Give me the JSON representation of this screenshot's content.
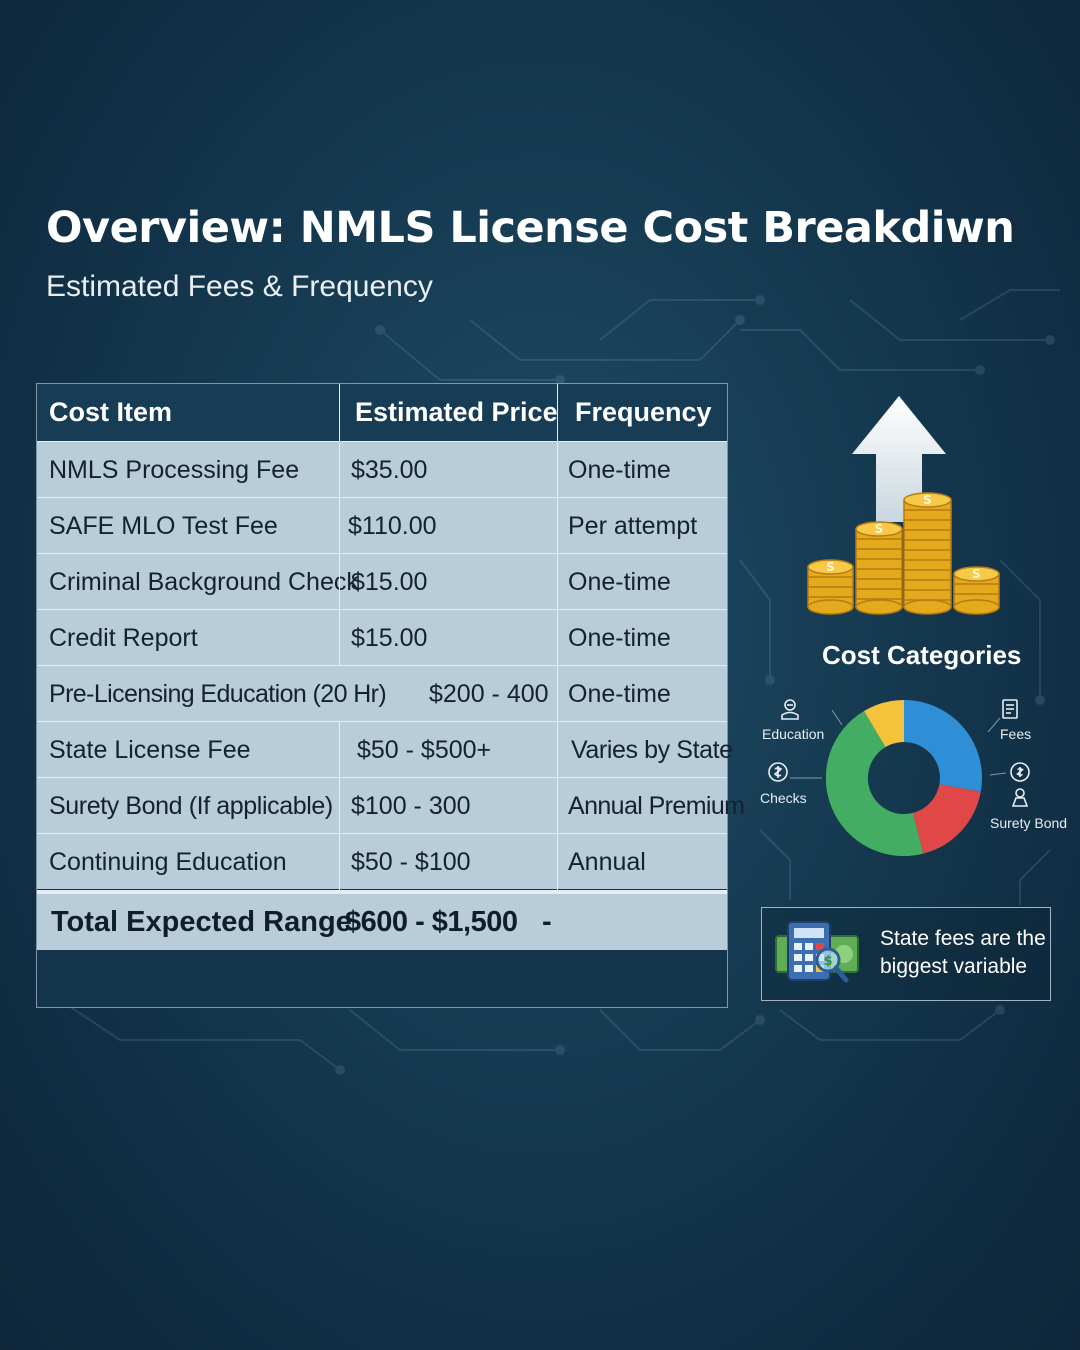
{
  "header": {
    "title": "Overview: NMLS License Cost Breakdiwn",
    "subtitle": "Estimated Fees & Frequency"
  },
  "table": {
    "headers": [
      "Cost Item",
      "Estimated Price",
      "Frequency"
    ],
    "rows": [
      {
        "item": "NMLS Processing Fee",
        "price": "$35.00",
        "frequency": "One-time"
      },
      {
        "item": "SAFE MLO Test Fee",
        "price": "$110.00",
        "frequency": "Per attempt"
      },
      {
        "item": "Criminal Background Check",
        "price": "$15.00",
        "frequency": "One-time"
      },
      {
        "item": "Credit Report",
        "price": "$15.00",
        "frequency": "One-time"
      },
      {
        "item": "Pre-Licensing Education (20 Hr)",
        "price": "$200 - 400",
        "frequency": "One-time"
      },
      {
        "item": "State License Fee",
        "price": "$50 - $500+",
        "frequency": "Varies by State"
      },
      {
        "item": "Surety Bond (If applicable)",
        "price": "$100 - 300",
        "frequency": "Annual Premium"
      },
      {
        "item": "Continuing Education",
        "price": "$50 - $100",
        "frequency": "Annual"
      }
    ],
    "total": {
      "label": "Total Expected Range",
      "price": "$600 - $1,500",
      "frequency": "-"
    }
  },
  "categories": {
    "title": "Cost Categories",
    "labels": {
      "education": "Education",
      "fees": "Fees",
      "checks": "Checks",
      "surety_bond": "Surety Bond"
    },
    "icons": [
      "coins-arrow-up-icon",
      "education-icon",
      "fees-icon",
      "checks-icon",
      "surety-bond-icon"
    ],
    "colors": {
      "blue": "#2f8fd6",
      "red": "#e04848",
      "green": "#43ad63",
      "yellow": "#f5c33b"
    }
  },
  "note": {
    "icon": "calculator-money-magnifier-icon",
    "text": "State fees are the biggest variable"
  }
}
